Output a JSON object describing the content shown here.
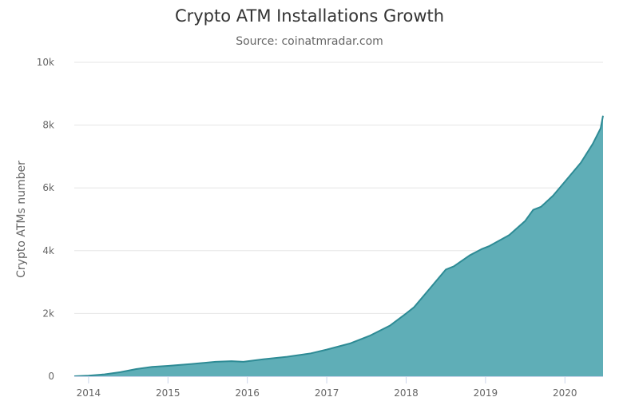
{
  "chart_data": {
    "type": "area",
    "title": "Crypto ATM Installations Growth",
    "subtitle": "Source: coinatmradar.com",
    "xlabel": "",
    "ylabel": "Crypto ATMs number",
    "xlim": [
      2013.82,
      2020.48
    ],
    "ylim": [
      0,
      10000
    ],
    "x_ticks": [
      2014,
      2015,
      2016,
      2017,
      2018,
      2019,
      2020
    ],
    "y_ticks": [
      0,
      2000,
      4000,
      6000,
      8000,
      10000
    ],
    "x_tick_labels": [
      "2014",
      "2015",
      "2016",
      "2017",
      "2018",
      "2019",
      "2020"
    ],
    "y_tick_labels": [
      "0",
      "2k",
      "4k",
      "6k",
      "8k",
      "10k"
    ],
    "grid": "horizontal",
    "legend": "none",
    "colors": {
      "area": "#5faeb7",
      "line": "#2e8b95",
      "grid": "#e6e6e6",
      "axis": "#ccd6eb"
    },
    "series": [
      {
        "x": [
          2013.82,
          2014.0,
          2014.2,
          2014.4,
          2014.6,
          2014.8,
          2015.0,
          2015.3,
          2015.6,
          2015.8,
          2015.95,
          2016.2,
          2016.5,
          2016.8,
          2017.0,
          2017.3,
          2017.55,
          2017.8,
          2018.0,
          2018.1,
          2018.3,
          2018.5,
          2018.6,
          2018.8,
          2018.95,
          2019.05,
          2019.3,
          2019.5,
          2019.6,
          2019.7,
          2019.85,
          2020.0,
          2020.2,
          2020.35,
          2020.45,
          2020.48
        ],
        "values": [
          0,
          20,
          60,
          130,
          230,
          300,
          330,
          390,
          460,
          480,
          460,
          540,
          620,
          730,
          850,
          1050,
          1300,
          1620,
          2000,
          2200,
          2800,
          3400,
          3500,
          3850,
          4050,
          4150,
          4500,
          4950,
          5300,
          5400,
          5750,
          6200,
          6800,
          7400,
          7900,
          8300
        ]
      }
    ]
  }
}
